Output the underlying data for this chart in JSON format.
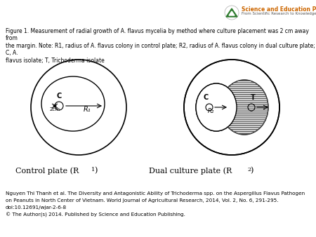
{
  "fig_caption": "Figure 1. Measurement of radial growth of A. flavus mycelia by method where culture placement was 2 cm away from\nthe margin. Note: R1, radius of A. flavus colony in control plate; R2, radius of A. flavus colony in dual culture plate; C, A.\nflavus isolate; T, Trichoderma isolate",
  "bottom_text_line1": "Nguyen Thi Thanh et al. The Diversity and Antagonistic Ability of Trichoderma spp. on the Aspergillus Flavus Pathogen",
  "bottom_text_line2": "on Peanuts in North Center of Vietnam. World Journal of Agricultural Research, 2014, Vol. 2, No. 6, 291-295.",
  "bottom_text_line3": "doi:10.12691/wjar-2-6-8",
  "bottom_text_line4": "© The Author(s) 2014. Published by Science and Education Publishing.",
  "ctrl_label": "Control plate (R",
  "ctrl_label_sub": "1",
  "dual_label": "Dual culture plate (R",
  "dual_label_sub": "2",
  "bg_color": "#ffffff",
  "plate_color": "#000000",
  "hatch_color": "#555555",
  "header_bg": "#006400"
}
